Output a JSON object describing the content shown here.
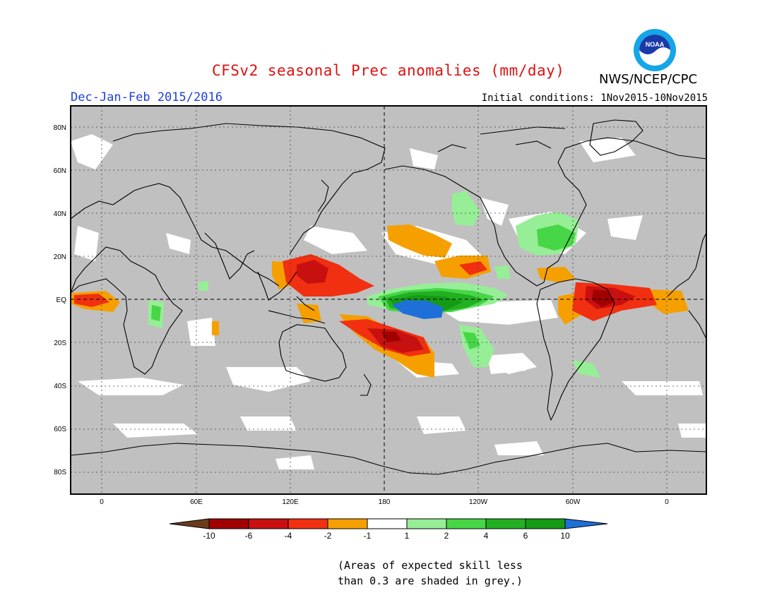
{
  "header": {
    "title": "CFSv2 seasonal Prec anomalies (mm/day)",
    "agency": "NWS/NCEP/CPC",
    "logo_text": "NOAA",
    "season": "Dec-Jan-Feb 2015/2016",
    "initial_conditions": "Initial conditions: 1Nov2015-10Nov2015"
  },
  "colors": {
    "title": "#e01010",
    "season": "#1f3fd8",
    "mask_grey": "#c0c0c0",
    "coast": "#000000"
  },
  "map": {
    "lat_labels": [
      "80N",
      "60N",
      "40N",
      "20N",
      "EQ",
      "20S",
      "40S",
      "60S",
      "80S"
    ],
    "lon_labels": [
      "0",
      "60E",
      "120E",
      "180",
      "120W",
      "60W",
      "0"
    ],
    "lon_range": [
      -20,
      385
    ],
    "lat_range": [
      -90,
      90
    ]
  },
  "legend": {
    "labels": [
      "-10",
      "-6",
      "-4",
      "-2",
      "-1",
      "1",
      "2",
      "4",
      "6",
      "10"
    ],
    "colors": [
      "#6b3b1e",
      "#a00000",
      "#c81010",
      "#f03010",
      "#f5a000",
      "#ffffff",
      "#96ee96",
      "#46d646",
      "#22b022",
      "#159a15",
      "#1f6fd8"
    ]
  },
  "footnote": {
    "line1": "(Areas of expected skill less",
    "line2": "than 0.3 are shaded in grey.)"
  }
}
